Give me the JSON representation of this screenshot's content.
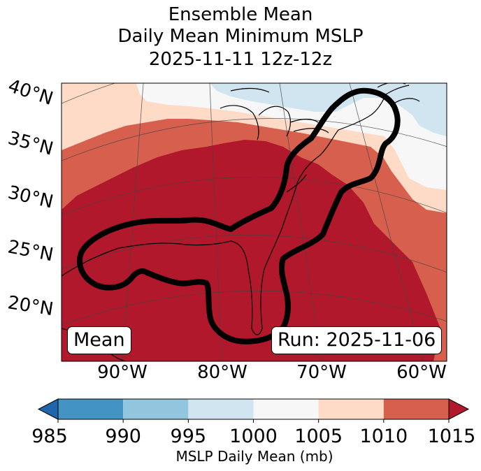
{
  "title": {
    "line1": "Ensemble Mean",
    "line2": "Daily Mean Minimum MSLP",
    "line3": "2025-11-11 12z-12z"
  },
  "map": {
    "lat_labels": [
      "40°N",
      "35°N",
      "30°N",
      "25°N",
      "20°N"
    ],
    "lon_labels": [
      "90°W",
      "80°W",
      "70°W",
      "60°W"
    ],
    "mean_label": "Mean",
    "run_label": "Run: 2025-11-06",
    "outline_color": "#000000"
  },
  "colorbar": {
    "ticks": [
      "985",
      "990",
      "995",
      "1000",
      "1005",
      "1010",
      "1015"
    ],
    "colors": [
      "#2166ac",
      "#4393c3",
      "#92c5de",
      "#d1e5f0",
      "#f7f7f7",
      "#fddbc7",
      "#d6604d",
      "#b2182b"
    ],
    "label": "MSLP Daily Mean (mb)"
  }
}
